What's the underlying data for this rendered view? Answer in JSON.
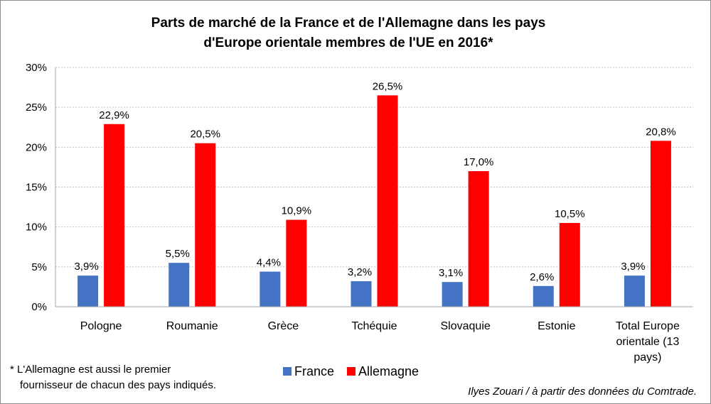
{
  "chart_data": {
    "type": "bar",
    "title": "Parts de marché de la France et de l'Allemagne dans les pays d'Europe orientale membres de l'UE en 2016*",
    "title_lines": [
      "Parts de marché de la France et de l'Allemagne dans les pays",
      "d'Europe orientale membres de l'UE en 2016*"
    ],
    "categories": [
      "Pologne",
      "Roumanie",
      "Grèce",
      "Tchéquie",
      "Slovaquie",
      "Estonie",
      "Total Europe orientale (13 pays)"
    ],
    "category_lines": [
      [
        "Pologne"
      ],
      [
        "Roumanie"
      ],
      [
        "Grèce"
      ],
      [
        "Tchéquie"
      ],
      [
        "Slovaquie"
      ],
      [
        "Estonie"
      ],
      [
        "Total Europe",
        "orientale (13",
        "pays)"
      ]
    ],
    "series": [
      {
        "name": "France",
        "color": "#4472c4",
        "values": [
          3.9,
          5.5,
          4.4,
          3.2,
          3.1,
          2.6,
          3.9
        ],
        "labels": [
          "3,9%",
          "5,5%",
          "4,4%",
          "3,2%",
          "3,1%",
          "2,6%",
          "3,9%"
        ]
      },
      {
        "name": "Allemagne",
        "color": "#ff0000",
        "values": [
          22.9,
          20.5,
          10.9,
          26.5,
          17.0,
          10.5,
          20.8
        ],
        "labels": [
          "22,9%",
          "20,5%",
          "10,9%",
          "26,5%",
          "17,0%",
          "10,5%",
          "20,8%"
        ]
      }
    ],
    "yticks": [
      0,
      5,
      10,
      15,
      20,
      25,
      30
    ],
    "ytick_labels": [
      "0%",
      "5%",
      "10%",
      "15%",
      "20%",
      "25%",
      "30%"
    ],
    "ylim": [
      0,
      30
    ],
    "xlabel": "",
    "ylabel": "",
    "grid": true,
    "legend": "bottom-center"
  },
  "footnote": {
    "line1": "* L'Allemagne est aussi le premier",
    "line2": "fournisseur de chacun des pays indiqués."
  },
  "source": "Ilyes Zouari / à partir des données du Comtrade."
}
